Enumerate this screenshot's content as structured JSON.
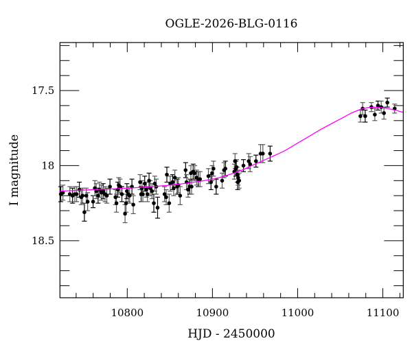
{
  "chart_data": {
    "type": "scatter",
    "title": "OGLE-2026-BLG-0116",
    "xlabel": "HJD - 2450000",
    "ylabel": "I magnitude",
    "xlim": [
      10721,
      11124
    ],
    "ylim": [
      18.88,
      17.18
    ],
    "y_inverted": true,
    "xticks": [
      10800,
      10900,
      11000,
      11100
    ],
    "xtick_labels": [
      "10800",
      "10900",
      "11000",
      "11100"
    ],
    "x_minor_step": 20,
    "yticks": [
      17.5,
      18,
      18.5
    ],
    "ytick_labels": [
      "17.5",
      "18",
      "18.5"
    ],
    "y_minor_step": 0.1,
    "grid": false,
    "colors": {
      "points": "#000000",
      "errorbars": "#555555",
      "model": "#ff00ff"
    },
    "points": [
      [
        10722,
        18.19,
        0.05
      ],
      [
        10724.5,
        18.18,
        0.05
      ],
      [
        10732.6,
        18.19,
        0.05
      ],
      [
        10735.8,
        18.2,
        0.05
      ],
      [
        10738.5,
        18.19,
        0.05
      ],
      [
        10740.6,
        18.19,
        0.05
      ],
      [
        10743.8,
        18.16,
        0.05
      ],
      [
        10746,
        18.21,
        0.05
      ],
      [
        10747.5,
        18.2,
        0.05
      ],
      [
        10749.7,
        18.31,
        0.06
      ],
      [
        10751.9,
        18.2,
        0.05
      ],
      [
        10753.5,
        18.24,
        0.06
      ],
      [
        10759.9,
        18.24,
        0.04
      ],
      [
        10762,
        18.15,
        0.05
      ],
      [
        10763.6,
        18.17,
        0.05
      ],
      [
        10765.8,
        18.2,
        0.05
      ],
      [
        10767.4,
        18.16,
        0.05
      ],
      [
        10769.6,
        18.18,
        0.05
      ],
      [
        10771.7,
        18.17,
        0.05
      ],
      [
        10773.9,
        18.19,
        0.05
      ],
      [
        10776,
        18.2,
        0.05
      ],
      [
        10779.7,
        18.14,
        0.05
      ],
      [
        10786.2,
        18.21,
        0.05
      ],
      [
        10787.3,
        18.25,
        0.06
      ],
      [
        10788.9,
        18.16,
        0.05
      ],
      [
        10790,
        18.13,
        0.05
      ],
      [
        10791.6,
        18.14,
        0.05
      ],
      [
        10793.7,
        18.19,
        0.05
      ],
      [
        10797.4,
        18.32,
        0.06
      ],
      [
        10798.6,
        18.25,
        0.06
      ],
      [
        10799.6,
        18.17,
        0.05
      ],
      [
        10801.2,
        18.19,
        0.05
      ],
      [
        10802.8,
        18.2,
        0.05
      ],
      [
        10805.5,
        18.14,
        0.05
      ],
      [
        10807.1,
        18.26,
        0.06
      ],
      [
        10815.1,
        18.11,
        0.05
      ],
      [
        10816.3,
        18.19,
        0.05
      ],
      [
        10817.3,
        18.15,
        0.05
      ],
      [
        10818.3,
        18.19,
        0.05
      ],
      [
        10820.5,
        18.12,
        0.05
      ],
      [
        10822.4,
        18.16,
        0.05
      ],
      [
        10823.7,
        18.19,
        0.05
      ],
      [
        10825.6,
        18.1,
        0.05
      ],
      [
        10827,
        18.15,
        0.05
      ],
      [
        10829.1,
        18.17,
        0.05
      ],
      [
        10831.2,
        18.25,
        0.06
      ],
      [
        10832.3,
        18.12,
        0.05
      ],
      [
        10834,
        18.14,
        0.05
      ],
      [
        10835.6,
        18.28,
        0.07
      ],
      [
        10843.8,
        18.19,
        0.05
      ],
      [
        10845.7,
        18.21,
        0.05
      ],
      [
        10846.5,
        18.06,
        0.05
      ],
      [
        10849.2,
        18.25,
        0.06
      ],
      [
        10850.5,
        18.12,
        0.05
      ],
      [
        10853.3,
        18.11,
        0.05
      ],
      [
        10854.5,
        18.15,
        0.05
      ],
      [
        10855.9,
        18.08,
        0.05
      ],
      [
        10858.6,
        18.14,
        0.05
      ],
      [
        10860,
        18.13,
        0.05
      ],
      [
        10862.1,
        18.2,
        0.06
      ],
      [
        10868.5,
        18.03,
        0.05
      ],
      [
        10869.6,
        18.11,
        0.05
      ],
      [
        10871.4,
        18.16,
        0.05
      ],
      [
        10873.4,
        18.14,
        0.05
      ],
      [
        10874.7,
        18.05,
        0.05
      ],
      [
        10875.5,
        18.14,
        0.05
      ],
      [
        10877.4,
        18.04,
        0.05
      ],
      [
        10879.2,
        18.05,
        0.05
      ],
      [
        10881.4,
        18.08,
        0.05
      ],
      [
        10883.3,
        18.09,
        0.05
      ],
      [
        10885.4,
        18.09,
        0.05
      ],
      [
        10895.3,
        18.07,
        0.05
      ],
      [
        10898.3,
        18.11,
        0.05
      ],
      [
        10899.6,
        18.05,
        0.05
      ],
      [
        10901.2,
        18.02,
        0.05
      ],
      [
        10904.4,
        18.14,
        0.05
      ],
      [
        10911.4,
        18.1,
        0.05
      ],
      [
        10913.6,
        18.03,
        0.05
      ],
      [
        10915.2,
        18.02,
        0.05
      ],
      [
        10925.7,
        18.04,
        0.05
      ],
      [
        10926.5,
        17.97,
        0.05
      ],
      [
        10927.5,
        18.02,
        0.05
      ],
      [
        10928.3,
        18.01,
        0.05
      ],
      [
        10929.1,
        18.06,
        0.05
      ],
      [
        10929.7,
        18.11,
        0.05
      ],
      [
        10930.2,
        18.08,
        0.05
      ],
      [
        10931.3,
        18.1,
        0.05
      ],
      [
        10936.4,
        18.0,
        0.04
      ],
      [
        10942.6,
        17.97,
        0.05
      ],
      [
        10944.2,
        17.99,
        0.05
      ],
      [
        10951.1,
        17.97,
        0.04
      ],
      [
        10956.5,
        17.92,
        0.06
      ],
      [
        10959.2,
        17.92,
        0.06
      ],
      [
        10967.7,
        17.92,
        0.05
      ],
      [
        11073.7,
        17.67,
        0.04
      ],
      [
        11076.3,
        17.62,
        0.04
      ],
      [
        11079.3,
        17.67,
        0.04
      ],
      [
        11086.6,
        17.61,
        0.03
      ],
      [
        11090.6,
        17.66,
        0.04
      ],
      [
        11094.3,
        17.6,
        0.03
      ],
      [
        11098.1,
        17.61,
        0.04
      ],
      [
        11101.3,
        17.65,
        0.04
      ],
      [
        11105.3,
        17.58,
        0.03
      ],
      [
        11113.9,
        17.62,
        0.03
      ]
    ],
    "model": [
      [
        10721,
        18.17
      ],
      [
        10760,
        18.16
      ],
      [
        10800,
        18.15
      ],
      [
        10850,
        18.13
      ],
      [
        10900,
        18.09
      ],
      [
        10930,
        18.04
      ],
      [
        10950,
        17.99
      ],
      [
        10970,
        17.94
      ],
      [
        10985,
        17.9
      ],
      [
        11000,
        17.85
      ],
      [
        11015,
        17.8
      ],
      [
        11030,
        17.75
      ],
      [
        11050,
        17.69
      ],
      [
        11065,
        17.645
      ],
      [
        11081,
        17.615
      ],
      [
        11095,
        17.612
      ],
      [
        11110,
        17.625
      ],
      [
        11124,
        17.645
      ]
    ]
  }
}
